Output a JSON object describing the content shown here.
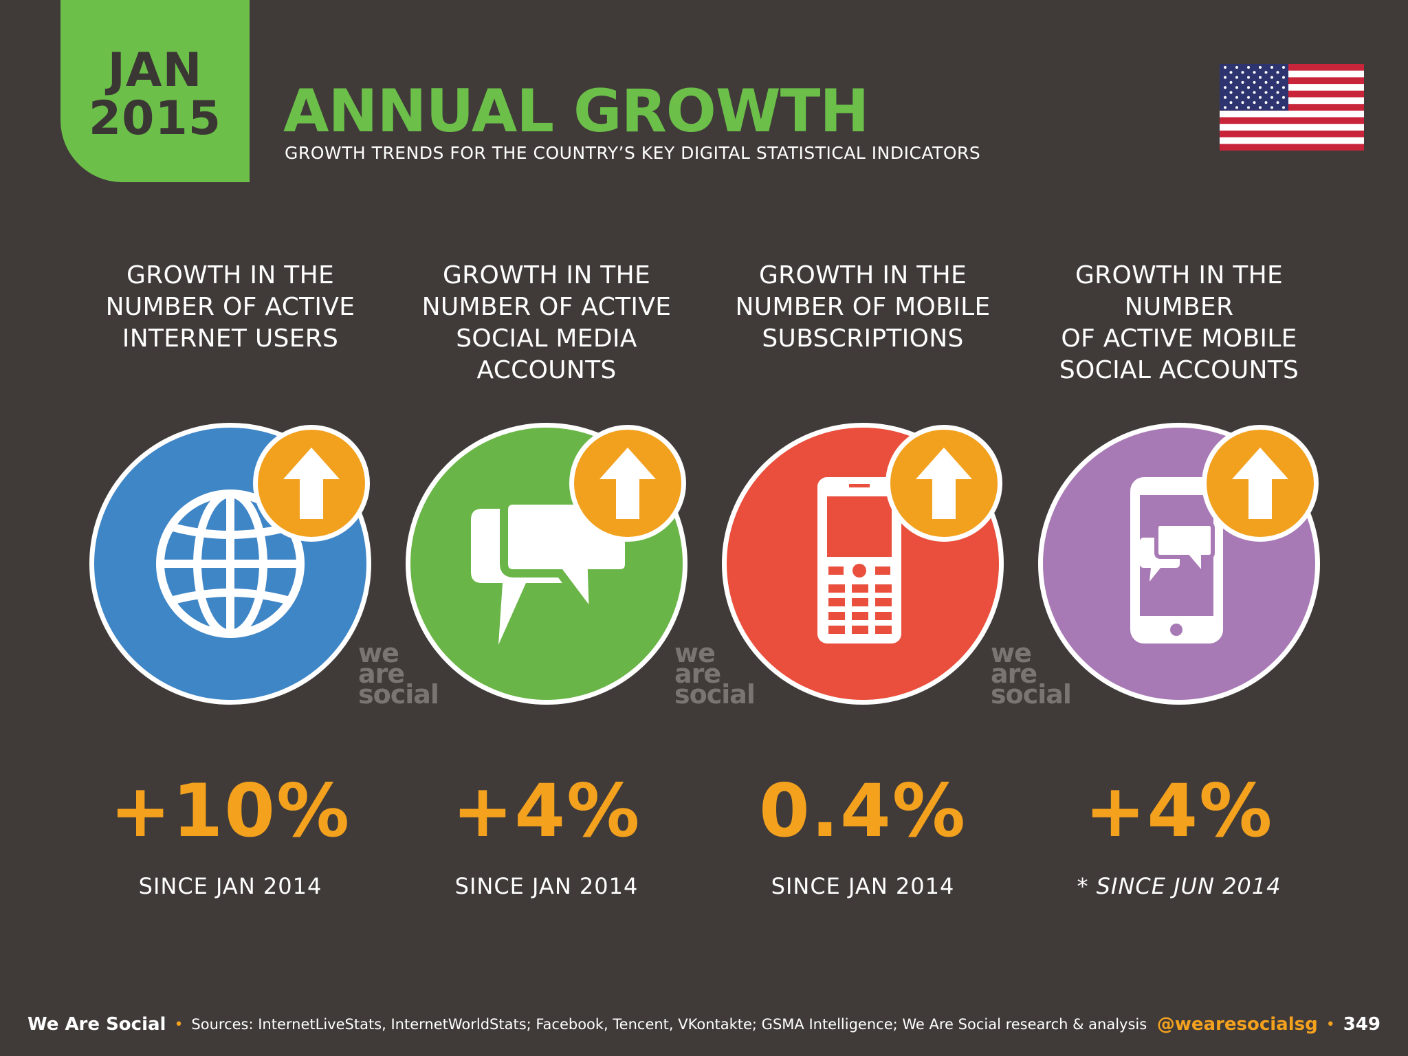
{
  "header": {
    "date_month": "JAN",
    "date_year": "2015",
    "title": "ANNUAL GROWTH",
    "subtitle": "GROWTH TRENDS FOR THE COUNTRY’S KEY DIGITAL STATISTICAL INDICATORS"
  },
  "colors": {
    "accent_green": "#6cc04a",
    "value_orange": "#f4a21e",
    "background": "#403b39",
    "blue": "#3f86c7",
    "green": "#6ab547",
    "red": "#e94f3c",
    "purple": "#a87ab5"
  },
  "columns": [
    {
      "heading_lines": [
        "GROWTH IN THE",
        "NUMBER OF ACTIVE",
        "INTERNET USERS"
      ],
      "icon": "globe-icon",
      "value": "+10%",
      "since": "SINCE JAN 2014"
    },
    {
      "heading_lines": [
        "GROWTH IN THE",
        "NUMBER OF ACTIVE",
        "SOCIAL MEDIA ACCOUNTS"
      ],
      "icon": "chat-bubbles-icon",
      "value": "+4%",
      "since": "SINCE JAN 2014"
    },
    {
      "heading_lines": [
        "GROWTH IN THE",
        "NUMBER OF MOBILE",
        "SUBSCRIPTIONS"
      ],
      "icon": "mobile-phone-icon",
      "value": "0.4%",
      "since": "SINCE JAN 2014"
    },
    {
      "heading_lines": [
        "GROWTH IN THE NUMBER",
        "OF ACTIVE MOBILE",
        "SOCIAL ACCOUNTS"
      ],
      "icon": "smartphone-chat-icon",
      "value": "+4%",
      "since": "* SINCE JUN 2014"
    }
  ],
  "watermark": [
    "we",
    "are",
    "social"
  ],
  "footer": {
    "brand": "We Are Social",
    "sources": "Sources: InternetLiveStats, InternetWorldStats; Facebook, Tencent, VKontakte; GSMA Intelligence; We Are Social research & analysis",
    "handle": "@wearesocialsg",
    "page_number": "349"
  }
}
